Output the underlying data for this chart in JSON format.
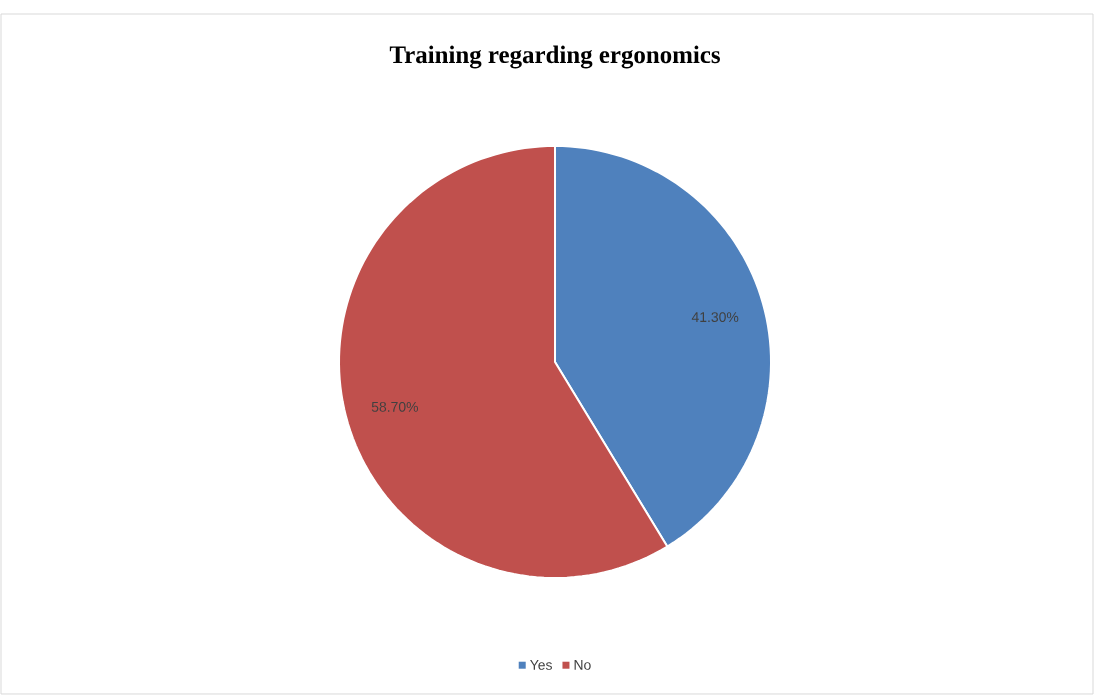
{
  "chart_data": {
    "type": "pie",
    "title": "Training regarding ergonomics",
    "categories": [
      "Yes",
      "No"
    ],
    "values": [
      41.3,
      58.7
    ],
    "colors": [
      "#4f81bd",
      "#c0504d"
    ],
    "value_labels": [
      "41.30%",
      "58.70%"
    ],
    "legend": "bottom"
  }
}
